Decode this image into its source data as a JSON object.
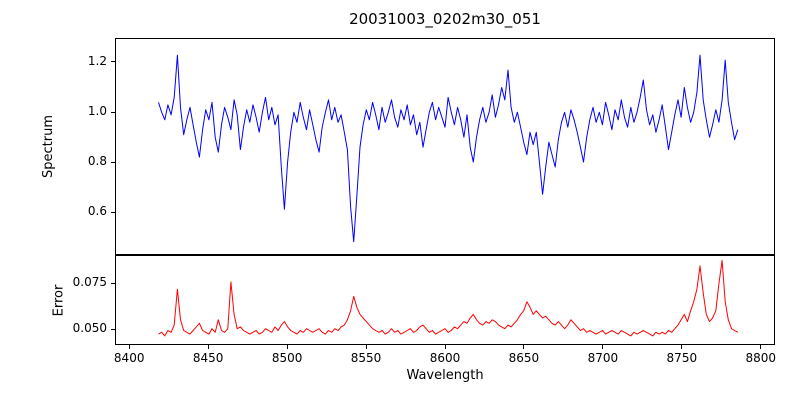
{
  "figure": {
    "title": "20031003_0202m30_051",
    "xlabel": "Wavelength",
    "background": "#ffffff",
    "text_color": "#000000",
    "xticks": {
      "values": [
        8400,
        8450,
        8500,
        8550,
        8600,
        8650,
        8700,
        8750,
        8800
      ],
      "labels": [
        "8400",
        "8450",
        "8500",
        "8550",
        "8600",
        "8650",
        "8700",
        "8750",
        "8800"
      ]
    }
  },
  "chart_data": [
    {
      "type": "line",
      "name": "spectrum",
      "ylabel": "Spectrum",
      "color": "#0000ff",
      "legend": "none",
      "grid": false,
      "xlim": [
        8391,
        8809
      ],
      "ylim": [
        0.43,
        1.295
      ],
      "yticks": [
        0.6,
        0.8,
        1.0,
        1.2
      ],
      "ytick_labels": [
        "0.6",
        "0.8",
        "1.0",
        "1.2"
      ],
      "x_start": 8418,
      "x_step": 2,
      "values": [
        1.04,
        1.0,
        0.97,
        1.03,
        0.99,
        1.06,
        1.23,
        1.02,
        0.91,
        0.97,
        1.02,
        0.95,
        0.88,
        0.82,
        0.93,
        1.01,
        0.97,
        1.04,
        0.9,
        0.84,
        0.95,
        1.02,
        0.98,
        0.93,
        1.05,
        0.99,
        0.85,
        0.94,
        1.01,
        0.96,
        1.03,
        0.98,
        0.92,
        1.0,
        1.06,
        0.97,
        1.02,
        0.95,
        0.99,
        0.78,
        0.61,
        0.8,
        0.92,
        1.0,
        0.96,
        1.04,
        0.98,
        0.93,
        1.01,
        0.95,
        0.89,
        0.84,
        0.94,
        1.0,
        1.05,
        0.97,
        1.02,
        0.96,
        0.99,
        0.92,
        0.85,
        0.62,
        0.48,
        0.66,
        0.86,
        0.95,
        1.01,
        0.97,
        1.04,
        0.99,
        0.93,
        1.02,
        0.96,
        1.0,
        1.05,
        0.98,
        0.94,
        1.01,
        0.97,
        1.03,
        0.95,
        0.99,
        0.91,
        0.96,
        0.86,
        0.93,
        1.0,
        1.04,
        0.97,
        1.02,
        0.98,
        0.94,
        1.06,
        1.0,
        0.95,
        1.02,
        0.97,
        0.9,
        0.99,
        0.86,
        0.8,
        0.9,
        0.97,
        1.02,
        0.96,
        1.0,
        1.07,
        0.98,
        1.03,
        1.1,
        1.05,
        1.17,
        1.02,
        0.96,
        1.0,
        0.94,
        0.88,
        0.83,
        0.92,
        0.87,
        0.92,
        0.8,
        0.67,
        0.78,
        0.88,
        0.83,
        0.78,
        0.89,
        0.96,
        1.0,
        0.94,
        1.01,
        0.97,
        0.92,
        0.86,
        0.8,
        0.9,
        0.97,
        1.02,
        0.96,
        1.0,
        0.95,
        1.04,
        0.99,
        0.93,
        1.01,
        0.97,
        1.05,
        0.98,
        0.94,
        1.02,
        0.96,
        1.0,
        1.06,
        1.13,
        1.01,
        0.95,
        0.99,
        0.92,
        0.97,
        1.03,
        0.94,
        0.85,
        0.92,
        0.99,
        1.05,
        0.98,
        1.1,
        1.02,
        0.96,
        1.0,
        1.08,
        1.23,
        1.05,
        0.97,
        0.9,
        0.95,
        1.01,
        0.96,
        1.05,
        1.21,
        1.04,
        0.96,
        0.89,
        0.93
      ]
    },
    {
      "type": "line",
      "name": "error",
      "ylabel": "Error",
      "color": "#ff0000",
      "legend": "none",
      "grid": false,
      "xlim": [
        8391,
        8809
      ],
      "ylim": [
        0.0415,
        0.0905
      ],
      "yticks": [
        0.05,
        0.075
      ],
      "ytick_labels": [
        "0.050",
        "0.075"
      ],
      "x_start": 8418,
      "x_step": 2,
      "values": [
        0.047,
        0.048,
        0.046,
        0.049,
        0.048,
        0.052,
        0.072,
        0.055,
        0.049,
        0.048,
        0.047,
        0.049,
        0.051,
        0.053,
        0.049,
        0.048,
        0.047,
        0.05,
        0.048,
        0.055,
        0.049,
        0.048,
        0.05,
        0.076,
        0.058,
        0.05,
        0.051,
        0.049,
        0.048,
        0.047,
        0.048,
        0.049,
        0.047,
        0.048,
        0.05,
        0.049,
        0.048,
        0.051,
        0.049,
        0.052,
        0.054,
        0.051,
        0.049,
        0.048,
        0.047,
        0.049,
        0.048,
        0.05,
        0.049,
        0.048,
        0.049,
        0.05,
        0.048,
        0.047,
        0.049,
        0.048,
        0.05,
        0.049,
        0.051,
        0.052,
        0.055,
        0.06,
        0.068,
        0.062,
        0.058,
        0.056,
        0.054,
        0.052,
        0.05,
        0.049,
        0.048,
        0.049,
        0.047,
        0.048,
        0.05,
        0.048,
        0.049,
        0.047,
        0.048,
        0.049,
        0.05,
        0.048,
        0.049,
        0.051,
        0.052,
        0.05,
        0.048,
        0.049,
        0.047,
        0.048,
        0.049,
        0.05,
        0.048,
        0.049,
        0.051,
        0.05,
        0.052,
        0.054,
        0.053,
        0.056,
        0.058,
        0.055,
        0.053,
        0.052,
        0.054,
        0.053,
        0.055,
        0.054,
        0.052,
        0.051,
        0.05,
        0.052,
        0.051,
        0.053,
        0.055,
        0.058,
        0.06,
        0.065,
        0.062,
        0.058,
        0.06,
        0.058,
        0.056,
        0.057,
        0.055,
        0.053,
        0.052,
        0.054,
        0.052,
        0.05,
        0.052,
        0.055,
        0.053,
        0.051,
        0.049,
        0.05,
        0.048,
        0.049,
        0.048,
        0.047,
        0.048,
        0.049,
        0.047,
        0.048,
        0.049,
        0.048,
        0.047,
        0.049,
        0.048,
        0.047,
        0.046,
        0.048,
        0.047,
        0.048,
        0.049,
        0.048,
        0.047,
        0.046,
        0.048,
        0.047,
        0.048,
        0.047,
        0.049,
        0.048,
        0.05,
        0.052,
        0.055,
        0.058,
        0.054,
        0.06,
        0.065,
        0.072,
        0.085,
        0.07,
        0.058,
        0.054,
        0.056,
        0.06,
        0.075,
        0.088,
        0.065,
        0.055,
        0.05,
        0.049,
        0.048
      ]
    }
  ]
}
